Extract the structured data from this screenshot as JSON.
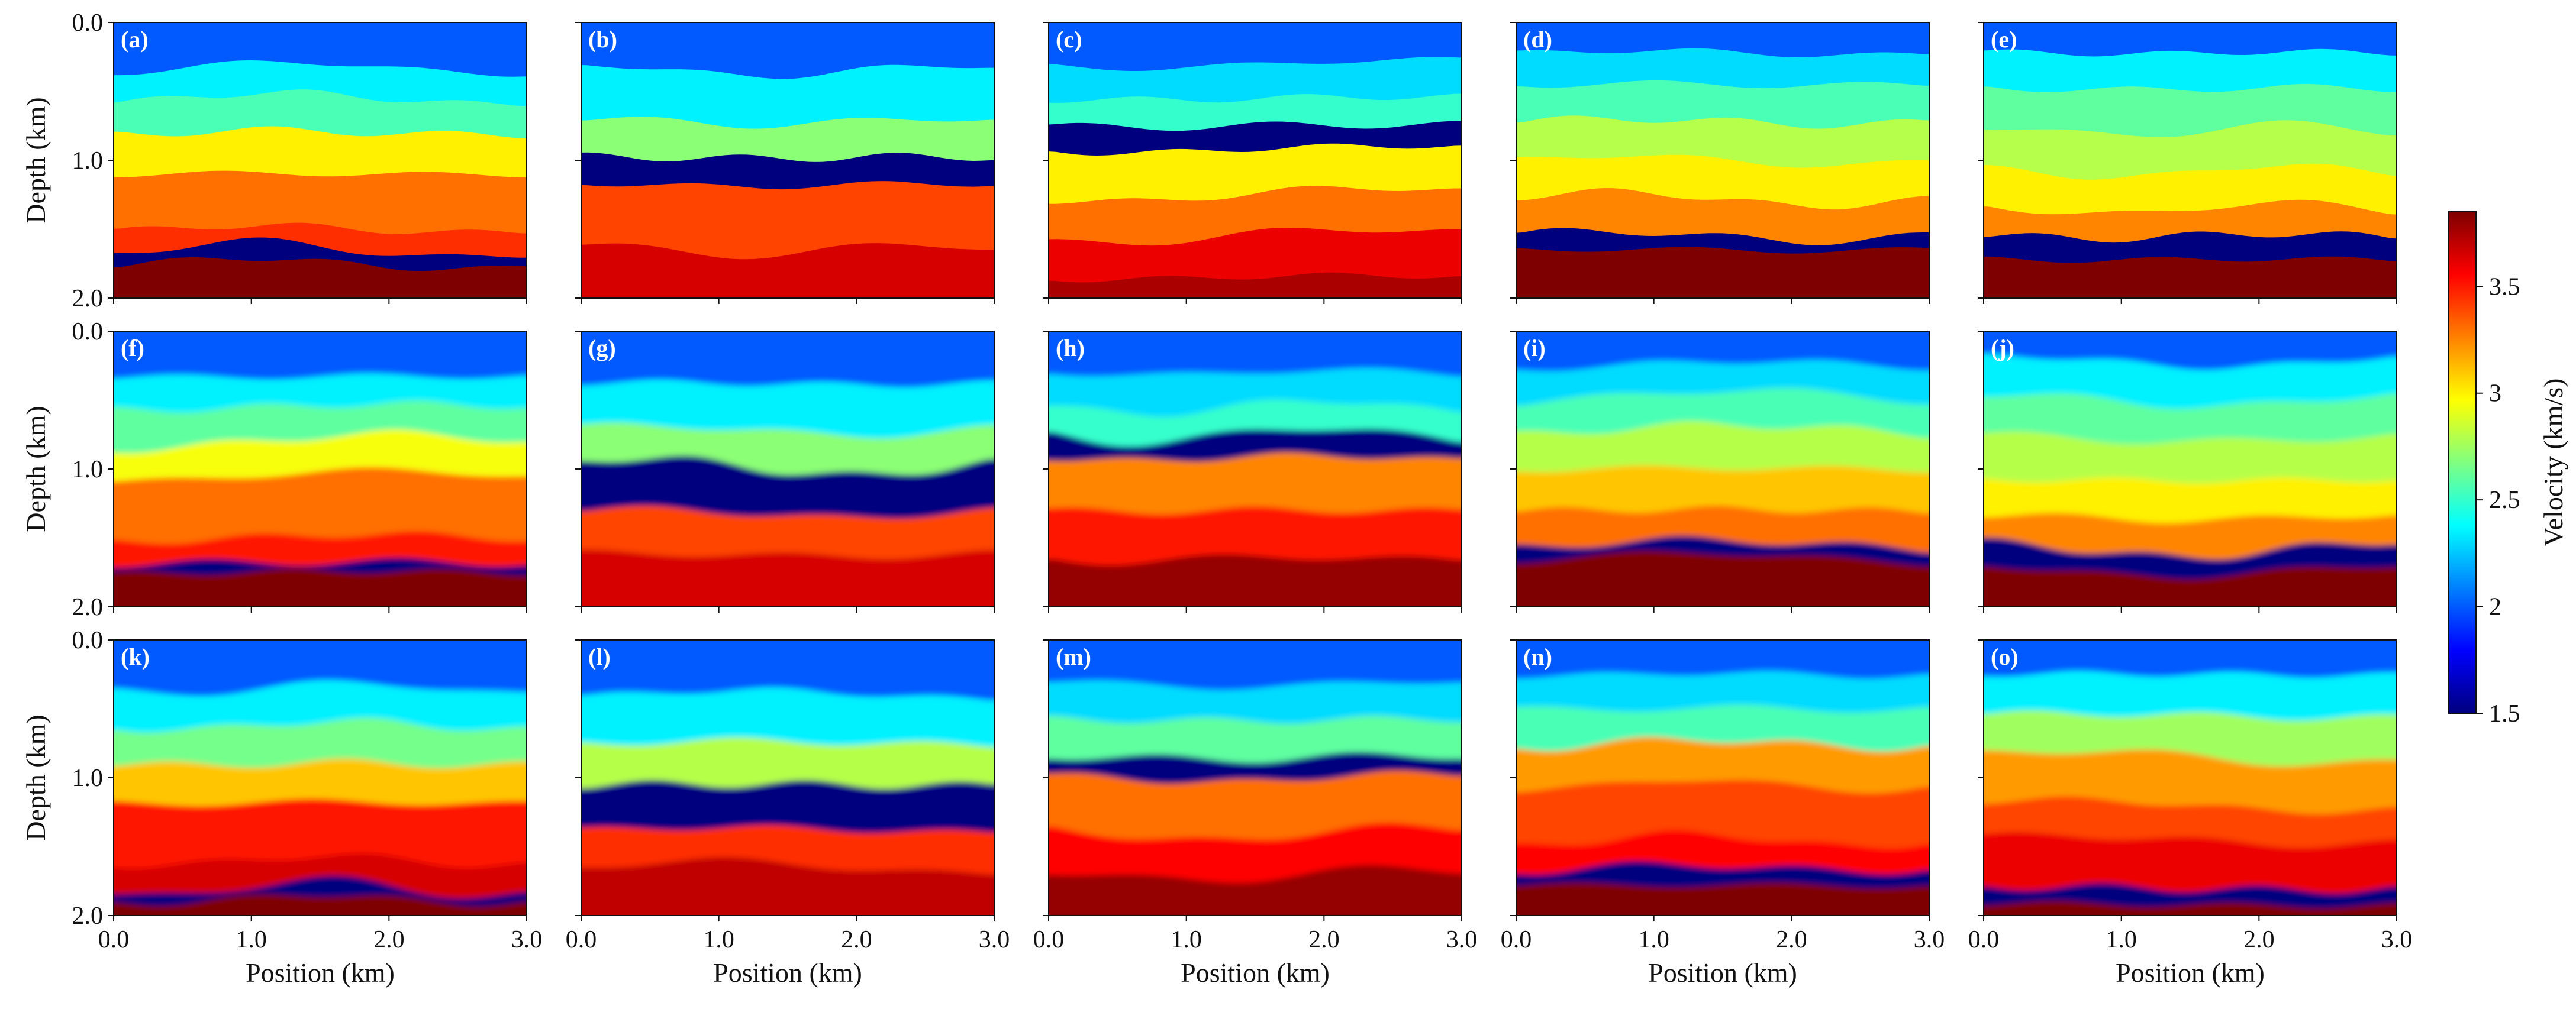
{
  "chart_data": {
    "type": "heatmap",
    "layout": {
      "rows": 3,
      "cols": 5
    },
    "xlabel": "Position (km)",
    "ylabel": "Depth (km)",
    "xlim": [
      0.0,
      3.0
    ],
    "ylim": [
      0.0,
      2.0
    ],
    "x_ticks": [
      "0.0",
      "1.0",
      "2.0",
      "3.0"
    ],
    "y_ticks": [
      "0.0",
      "1.0",
      "2.0"
    ],
    "x_tick_values": [
      0.0,
      1.0,
      2.0,
      3.0
    ],
    "y_tick_values": [
      0.0,
      1.0,
      2.0
    ],
    "colorbar": {
      "label": "Velocity (km/s)",
      "range": [
        1.5,
        3.85
      ],
      "ticks": [
        "1.5",
        "2",
        "2.5",
        "3",
        "3.5"
      ],
      "tick_values": [
        1.5,
        2.0,
        2.5,
        3.0,
        3.5
      ],
      "colormap": "jet",
      "colors": [
        "#00007f",
        "#0000ff",
        "#0080ff",
        "#00ffff",
        "#80ff80",
        "#ffff00",
        "#ff8000",
        "#ff0000",
        "#7f0000"
      ]
    },
    "panels": [
      {
        "label": "(a)",
        "row": 0,
        "col": 0,
        "smooth": false,
        "interfaces": [
          0.33,
          0.55,
          0.8,
          1.1,
          1.5,
          1.65,
          1.75
        ],
        "velocities": [
          2.0,
          2.35,
          2.55,
          3.0,
          3.3,
          3.45,
          1.5,
          3.85
        ]
      },
      {
        "label": "(b)",
        "row": 0,
        "col": 1,
        "smooth": false,
        "interfaces": [
          0.35,
          0.72,
          0.98,
          1.18,
          1.65
        ],
        "velocities": [
          2.0,
          2.35,
          2.7,
          1.5,
          3.4,
          3.65,
          3.85
        ]
      },
      {
        "label": "(c)",
        "row": 0,
        "col": 2,
        "smooth": false,
        "interfaces": [
          0.3,
          0.55,
          0.75,
          0.92,
          1.25,
          1.55,
          1.85
        ],
        "velocities": [
          2.0,
          2.3,
          2.5,
          1.5,
          3.0,
          3.3,
          3.6,
          3.75
        ]
      },
      {
        "label": "(d)",
        "row": 0,
        "col": 3,
        "smooth": false,
        "interfaces": [
          0.22,
          0.45,
          0.72,
          1.0,
          1.28,
          1.55,
          1.65
        ],
        "velocities": [
          2.0,
          2.3,
          2.55,
          2.8,
          3.0,
          3.25,
          1.5,
          3.85
        ]
      },
      {
        "label": "(e)",
        "row": 0,
        "col": 4,
        "smooth": false,
        "interfaces": [
          0.22,
          0.48,
          0.78,
          1.08,
          1.35,
          1.55,
          1.72
        ],
        "velocities": [
          2.0,
          2.35,
          2.6,
          2.8,
          3.0,
          3.25,
          1.5,
          3.85
        ]
      },
      {
        "label": "(f)",
        "row": 1,
        "col": 0,
        "smooth": true,
        "interfaces": [
          0.33,
          0.55,
          0.8,
          1.05,
          1.5,
          1.68,
          1.75
        ],
        "velocities": [
          2.0,
          2.35,
          2.6,
          2.95,
          3.3,
          3.5,
          1.5,
          3.85
        ]
      },
      {
        "label": "(g)",
        "row": 1,
        "col": 1,
        "smooth": true,
        "interfaces": [
          0.38,
          0.72,
          0.98,
          1.32,
          1.62
        ],
        "velocities": [
          2.0,
          2.35,
          2.7,
          1.5,
          3.4,
          3.65,
          3.85
        ]
      },
      {
        "label": "(h)",
        "row": 1,
        "col": 2,
        "smooth": true,
        "interfaces": [
          0.3,
          0.55,
          0.75,
          0.92,
          1.3,
          1.65
        ],
        "velocities": [
          2.0,
          2.3,
          2.5,
          1.5,
          3.25,
          3.5,
          3.8
        ]
      },
      {
        "label": "(i)",
        "row": 1,
        "col": 3,
        "smooth": true,
        "interfaces": [
          0.25,
          0.48,
          0.72,
          1.0,
          1.3,
          1.55,
          1.65
        ],
        "velocities": [
          2.0,
          2.3,
          2.55,
          2.8,
          3.1,
          3.3,
          1.5,
          3.85
        ]
      },
      {
        "label": "(j)",
        "row": 1,
        "col": 4,
        "smooth": true,
        "interfaces": [
          0.22,
          0.5,
          0.78,
          1.08,
          1.35,
          1.58,
          1.74
        ],
        "velocities": [
          2.0,
          2.35,
          2.6,
          2.8,
          3.0,
          3.25,
          1.5,
          3.85
        ]
      },
      {
        "label": "(k)",
        "row": 2,
        "col": 0,
        "smooth": true,
        "interfaces": [
          0.35,
          0.62,
          0.9,
          1.18,
          1.6,
          1.8,
          1.88
        ],
        "velocities": [
          2.0,
          2.35,
          2.65,
          3.1,
          3.5,
          3.65,
          1.5,
          3.85
        ]
      },
      {
        "label": "(l)",
        "row": 2,
        "col": 1,
        "smooth": true,
        "interfaces": [
          0.4,
          0.75,
          1.05,
          1.38,
          1.65
        ],
        "velocities": [
          2.0,
          2.35,
          2.8,
          1.5,
          3.45,
          3.7,
          3.85
        ]
      },
      {
        "label": "(m)",
        "row": 2,
        "col": 2,
        "smooth": true,
        "interfaces": [
          0.32,
          0.58,
          0.85,
          1.0,
          1.4,
          1.7
        ],
        "velocities": [
          2.0,
          2.3,
          2.6,
          1.5,
          3.3,
          3.55,
          3.8
        ]
      },
      {
        "label": "(n)",
        "row": 2,
        "col": 3,
        "smooth": true,
        "interfaces": [
          0.25,
          0.5,
          0.75,
          1.05,
          1.45,
          1.65,
          1.78
        ],
        "velocities": [
          2.0,
          2.3,
          2.55,
          3.2,
          3.4,
          3.55,
          1.5,
          3.85
        ]
      },
      {
        "label": "(o)",
        "row": 2,
        "col": 4,
        "smooth": true,
        "interfaces": [
          0.25,
          0.55,
          0.85,
          1.2,
          1.45,
          1.8,
          1.92
        ],
        "velocities": [
          2.0,
          2.35,
          2.75,
          3.2,
          3.4,
          3.6,
          1.5,
          3.85
        ]
      }
    ]
  }
}
